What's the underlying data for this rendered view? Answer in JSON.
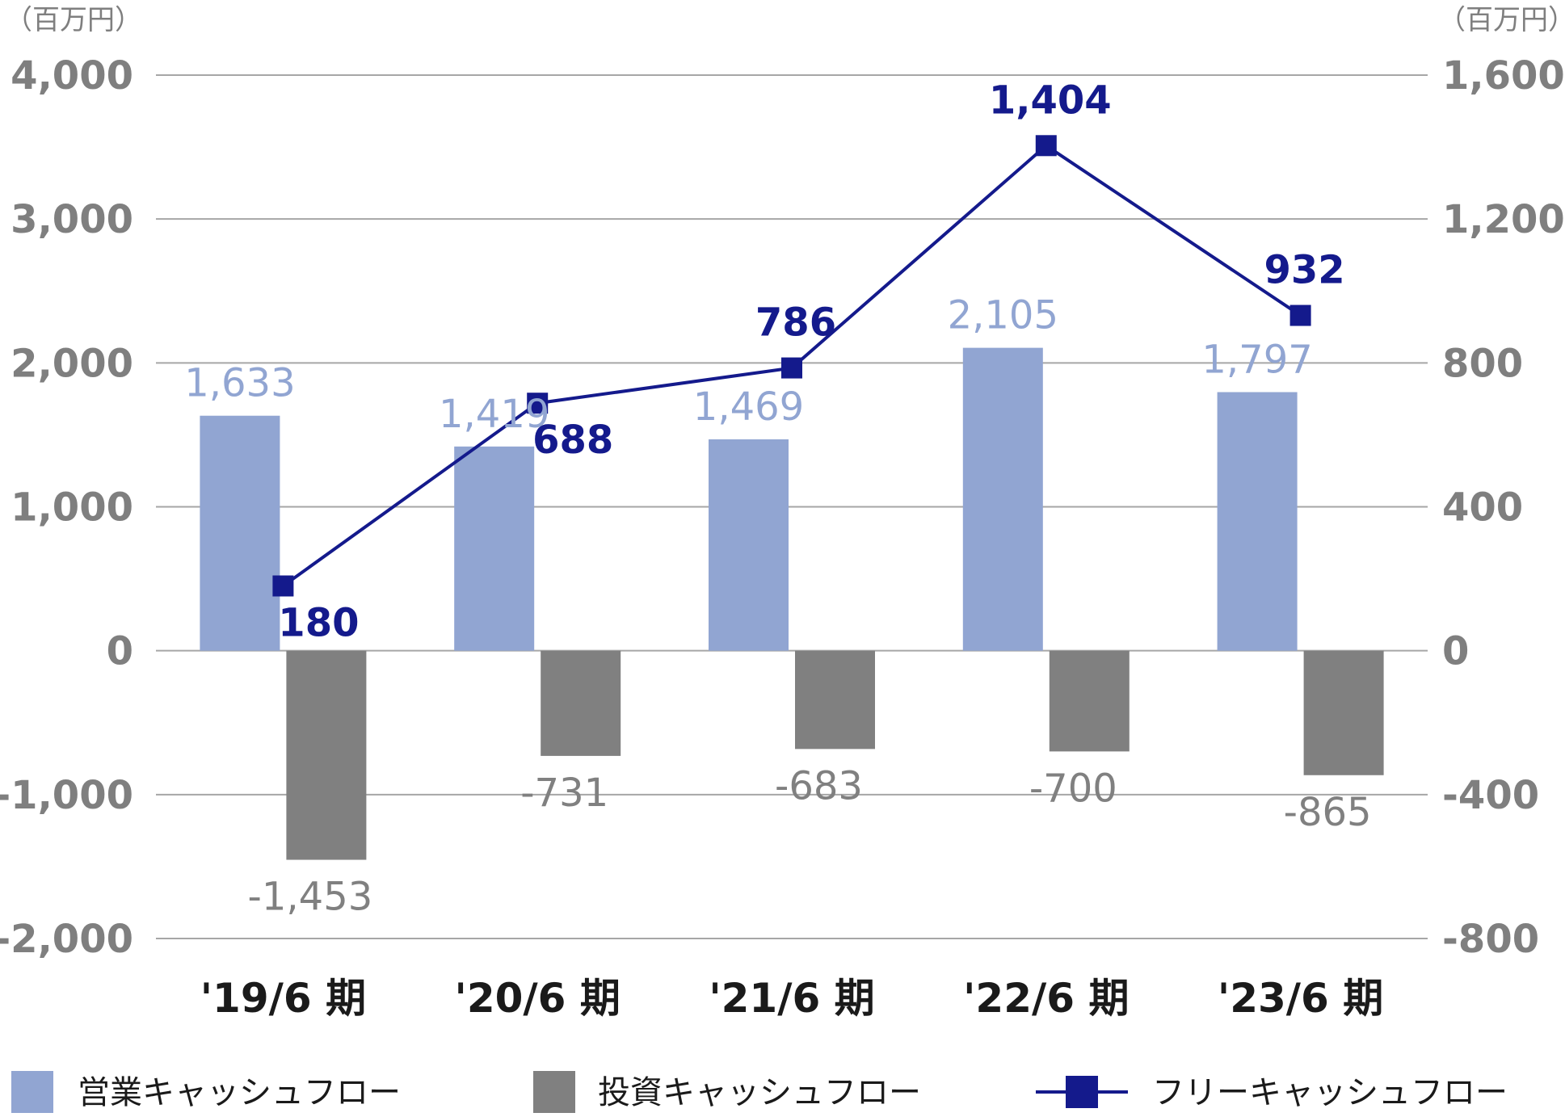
{
  "colors": {
    "operating": "#91a5d2",
    "investing": "#808080",
    "free": "#141a8c",
    "grid": "#a6a6a6",
    "axis_text": "#7f7f7f"
  },
  "chart_data": {
    "type": "bar",
    "left_unit": "（百万円）",
    "right_unit": "（百万円）",
    "categories": [
      "'19/6 期",
      "'20/6 期",
      "'21/6 期",
      "'22/6 期",
      "'23/6 期"
    ],
    "left_axis": {
      "ylim": [
        -2000,
        4000
      ],
      "ticks": [
        "4,000",
        "3,000",
        "2,000",
        "1,000",
        "0",
        "-1,000",
        "-2,000"
      ]
    },
    "right_axis": {
      "ylim": [
        -800,
        1600
      ],
      "ticks": [
        "1,600",
        "1,200",
        "800",
        "400",
        "0",
        "-400",
        "-800"
      ]
    },
    "series": [
      {
        "name": "営業キャッシュフロー",
        "type": "bar",
        "axis": "left",
        "values": [
          1633,
          1419,
          1469,
          2105,
          1797
        ],
        "labels": [
          "1,633",
          "1,419",
          "1,469",
          "2,105",
          "1,797"
        ]
      },
      {
        "name": "投資キャッシュフロー",
        "type": "bar",
        "axis": "left",
        "values": [
          -1453,
          -731,
          -683,
          -700,
          -865
        ],
        "labels": [
          "-1,453",
          "-731",
          "-683",
          "-700",
          "-865"
        ]
      },
      {
        "name": "フリーキャッシュフロー",
        "type": "line",
        "axis": "right",
        "values": [
          180,
          688,
          786,
          1404,
          932
        ],
        "labels": [
          "180",
          "688",
          "786",
          "1,404",
          "932"
        ]
      }
    ],
    "grid": true,
    "legend_position": "bottom"
  }
}
